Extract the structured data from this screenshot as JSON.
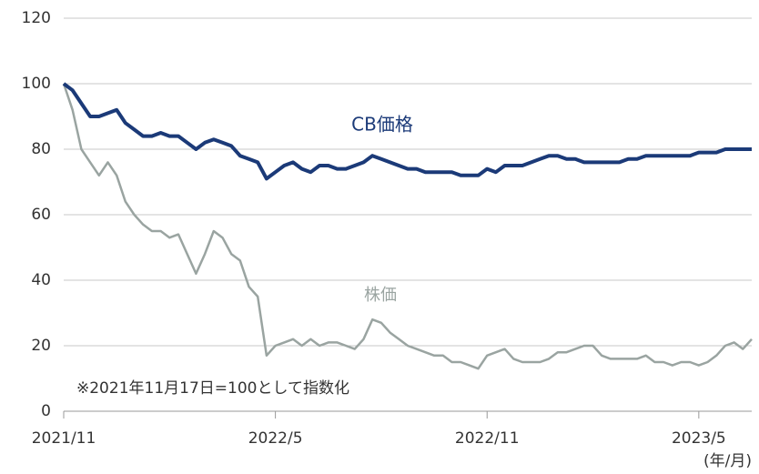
{
  "chart_data": {
    "type": "line",
    "categories": [
      "2021/11",
      null,
      null,
      null,
      null,
      null,
      null,
      null,
      null,
      null,
      null,
      null,
      null,
      null,
      null,
      null,
      null,
      null,
      null,
      null,
      null,
      null,
      null,
      null,
      "2022/5",
      null,
      null,
      null,
      null,
      null,
      null,
      null,
      null,
      null,
      null,
      null,
      null,
      null,
      null,
      null,
      null,
      null,
      null,
      null,
      null,
      null,
      null,
      null,
      "2022/11",
      null,
      null,
      null,
      null,
      null,
      null,
      null,
      null,
      null,
      null,
      null,
      null,
      null,
      null,
      null,
      null,
      null,
      null,
      null,
      null,
      null,
      null,
      null,
      "2023/5",
      null,
      null,
      null,
      null,
      null,
      null
    ],
    "series": [
      {
        "name": "CB価格",
        "color": "#1b3a78",
        "values": [
          100,
          98,
          94,
          90,
          90,
          91,
          92,
          88,
          86,
          84,
          84,
          85,
          84,
          84,
          82,
          80,
          82,
          83,
          82,
          81,
          78,
          77,
          76,
          71,
          73,
          75,
          76,
          74,
          73,
          75,
          75,
          74,
          74,
          75,
          76,
          78,
          77,
          76,
          75,
          74,
          74,
          73,
          73,
          73,
          73,
          72,
          72,
          72,
          74,
          73,
          75,
          75,
          75,
          76,
          77,
          78,
          78,
          77,
          77,
          76,
          76,
          76,
          76,
          76,
          77,
          77,
          78,
          78,
          78,
          78,
          78,
          78,
          79,
          79,
          79,
          80,
          80,
          80,
          80
        ]
      },
      {
        "name": "株価",
        "color": "#9aa4a1",
        "values": [
          100,
          92,
          80,
          76,
          72,
          76,
          72,
          64,
          60,
          57,
          55,
          55,
          53,
          54,
          48,
          42,
          48,
          55,
          53,
          48,
          46,
          38,
          35,
          17,
          20,
          21,
          22,
          20,
          22,
          20,
          21,
          21,
          20,
          19,
          22,
          28,
          27,
          24,
          22,
          20,
          19,
          18,
          17,
          17,
          15,
          15,
          14,
          13,
          17,
          18,
          19,
          16,
          15,
          15,
          15,
          16,
          18,
          18,
          19,
          20,
          20,
          17,
          16,
          16,
          16,
          16,
          17,
          15,
          15,
          14,
          15,
          15,
          14,
          15,
          17,
          20,
          21,
          19,
          22
        ]
      }
    ],
    "ylim": [
      0,
      120
    ],
    "yticks": [
      0,
      20,
      40,
      60,
      80,
      100,
      120
    ],
    "grid": true,
    "annotations": [
      "※2021年11月17日=100として指数化",
      "(年/月)"
    ]
  }
}
